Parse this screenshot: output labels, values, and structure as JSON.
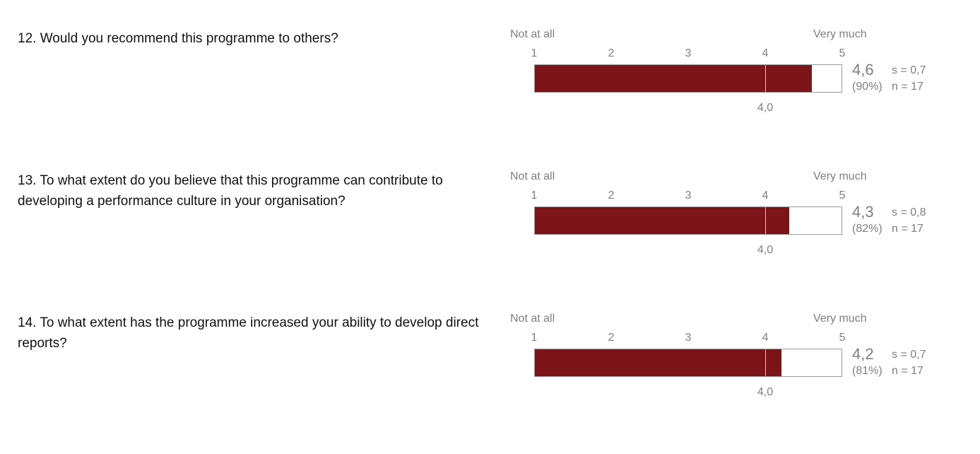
{
  "chart_data": {
    "type": "bar",
    "scale": {
      "min": 1,
      "max": 5,
      "ticks": [
        1,
        2,
        3,
        4,
        5
      ],
      "min_label": "Not at all",
      "max_label": "Very much"
    },
    "bar_color": "#7d1419",
    "items": [
      {
        "question": "12. Would you recommend this programme to others?",
        "value": 4.6,
        "value_label": "4,6",
        "percent_label": "(90%)",
        "sd_label": "s = 0,7",
        "n_label": "n = 17",
        "reference": 4.0,
        "reference_label": "4,0"
      },
      {
        "question": "13. To what extent do you believe that this programme can contribute to developing a performance culture in your organisation?",
        "value": 4.3,
        "value_label": "4,3",
        "percent_label": "(82%)",
        "sd_label": "s = 0,8",
        "n_label": "n = 17",
        "reference": 4.0,
        "reference_label": "4,0"
      },
      {
        "question": "14. To what extent has the programme increased your ability to develop direct reports?",
        "value": 4.2,
        "value_label": "4,2",
        "percent_label": "(81%)",
        "sd_label": "s = 0,7",
        "n_label": "n = 17",
        "reference": 4.0,
        "reference_label": "4,0"
      }
    ]
  }
}
